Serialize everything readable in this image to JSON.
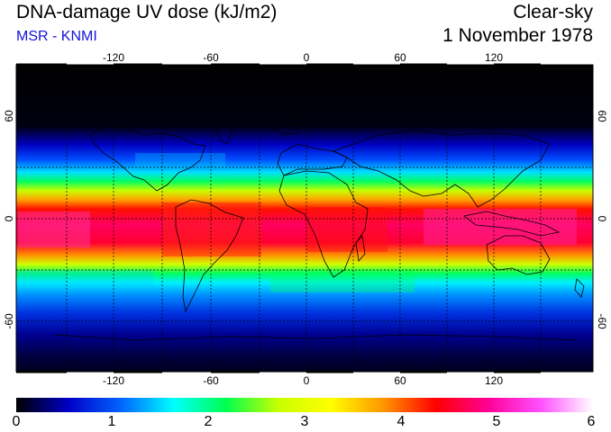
{
  "header": {
    "title": "DNA-damage UV dose (kJ/m2)",
    "credit": "MSR - KNMI",
    "condition": "Clear-sky",
    "date": "1 November 1978"
  },
  "map": {
    "longitude_ticks": [
      "-120",
      "-60",
      "0",
      "60",
      "120"
    ],
    "latitude_ticks": [
      "60",
      "0",
      "-60"
    ],
    "grid": "dashed every 30 degrees",
    "projection": "equirectangular"
  },
  "colorbar": {
    "labels": [
      "0",
      "1",
      "2",
      "3",
      "4",
      "5",
      "6"
    ],
    "min": 0,
    "max": 6,
    "colors": [
      "#000000",
      "#0000c8",
      "#0064ff",
      "#00ffff",
      "#00ff50",
      "#c8ff00",
      "#ffff00",
      "#ff9600",
      "#ff0000",
      "#ff0096",
      "#ff50ff",
      "#ffffff"
    ]
  }
}
